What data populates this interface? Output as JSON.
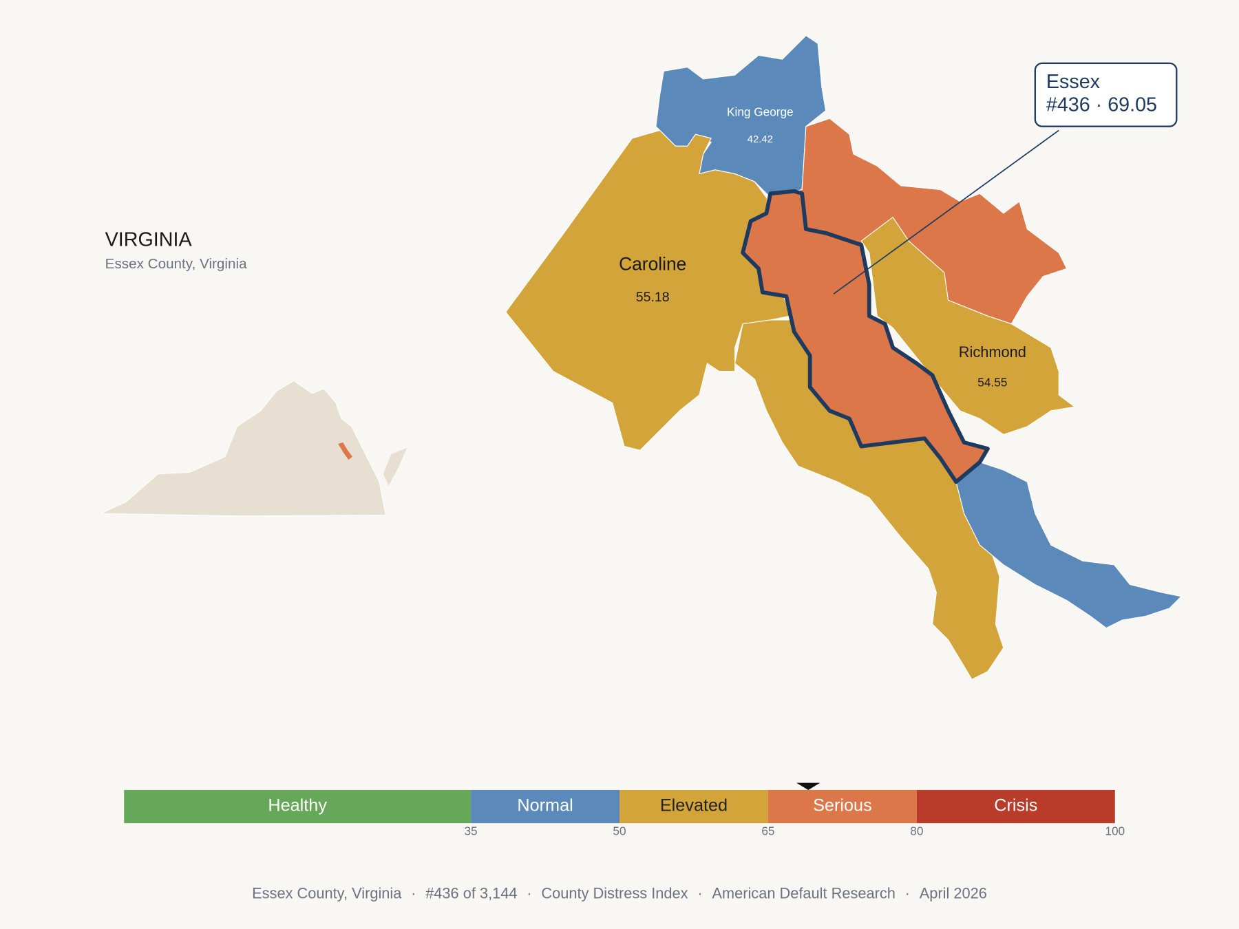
{
  "header": {
    "title": "VIRGINIA",
    "subtitle": "Essex County, Virginia"
  },
  "map": {
    "counties": [
      {
        "name": "King George",
        "value": 42.42
      },
      {
        "name": "Caroline",
        "value": 55.18
      },
      {
        "name": "Richmond",
        "value": 54.55
      }
    ],
    "callout": {
      "name": "Essex",
      "label": "#436 · 69.05"
    }
  },
  "legend": {
    "range": [
      0,
      100
    ],
    "bands": [
      {
        "name": "Healthy",
        "color": "#67a75a",
        "label_color": "#ffffff"
      },
      {
        "name": "Normal",
        "color": "#5b8aba",
        "label_color": "#ffffff"
      },
      {
        "name": "Elevated",
        "color": "#d3a43a",
        "label_color": "#222222"
      },
      {
        "name": "Serious",
        "color": "#dc774a",
        "label_color": "#ffffff"
      },
      {
        "name": "Crisis",
        "color": "#b93c2b",
        "label_color": "#ffffff"
      }
    ],
    "ticks": [
      35,
      50,
      65,
      80,
      100
    ],
    "marker": 69.05
  },
  "footer": {
    "separator": "·",
    "parts": [
      "Essex County, Virginia",
      "#436 of 3,144",
      "County Distress Index",
      "American Default Research",
      "April 2026"
    ]
  }
}
